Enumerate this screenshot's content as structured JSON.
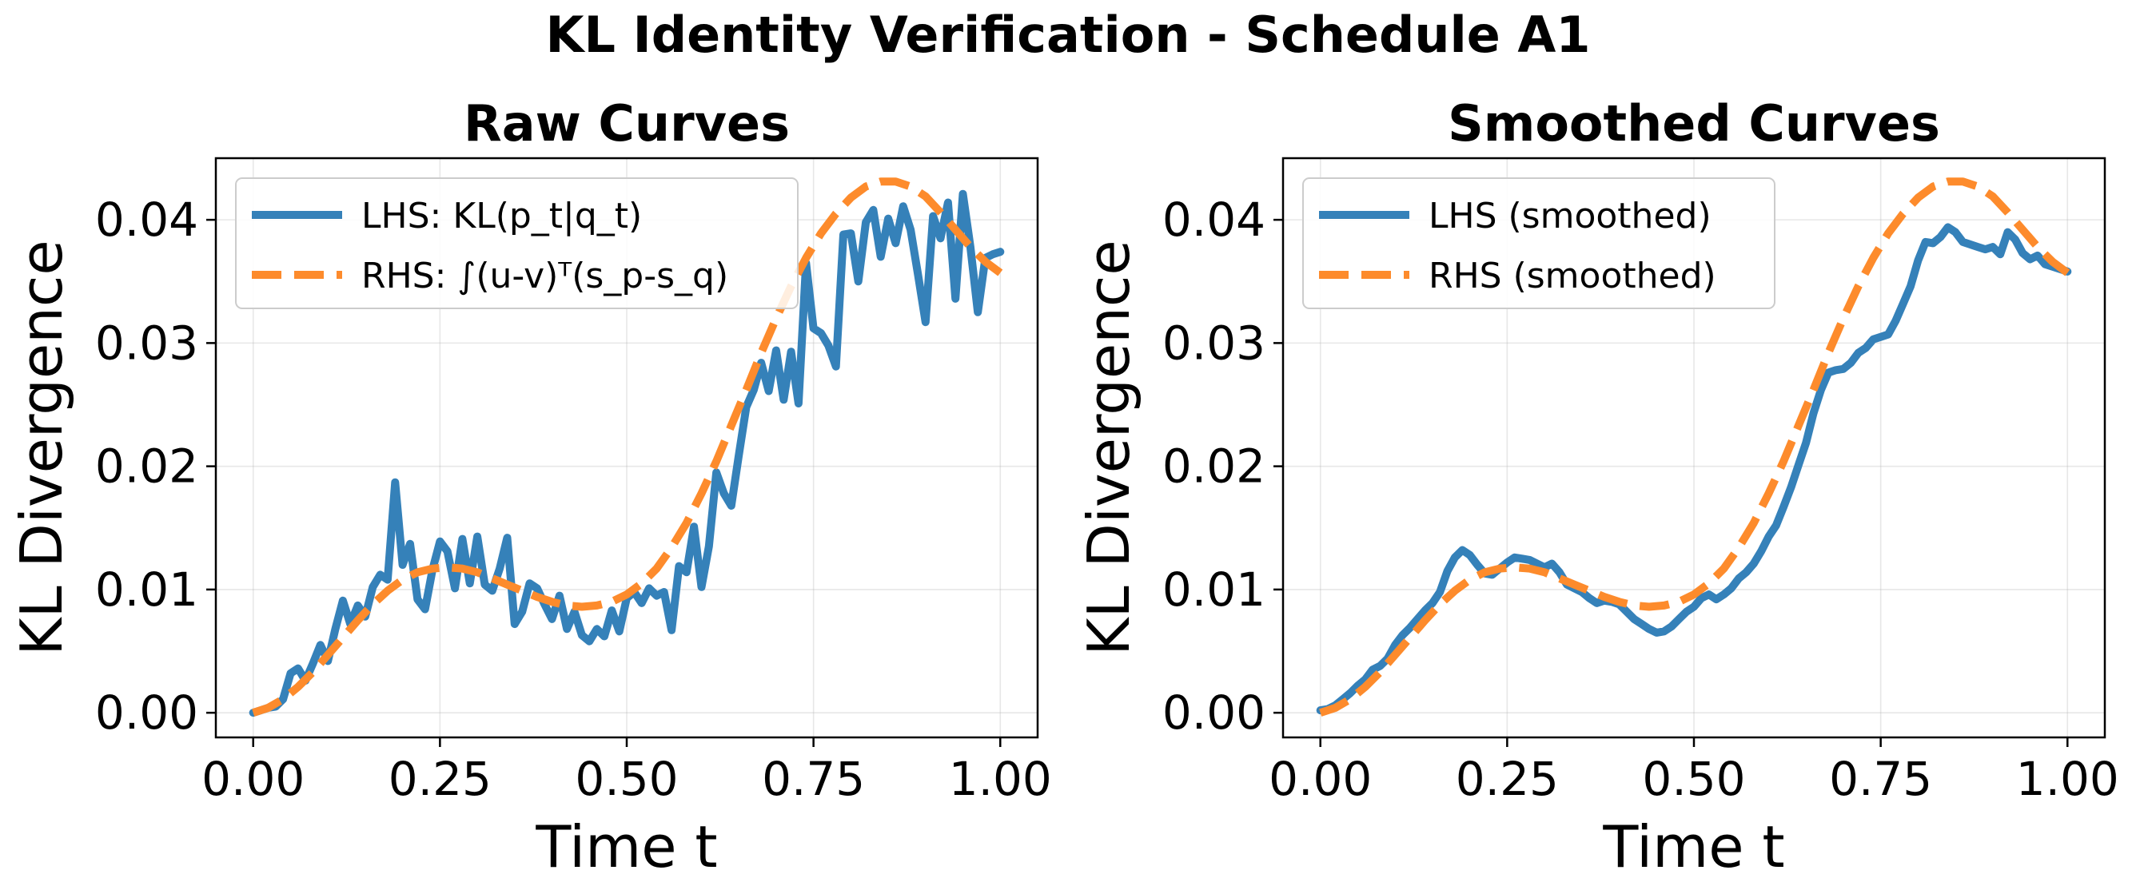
{
  "figure": {
    "title": "KL Identity Verification - Schedule A1"
  },
  "colors": {
    "lhs": "#3581b9",
    "rhs": "#fd8b2c"
  },
  "chart_data": [
    {
      "type": "line",
      "title": "Raw Curves",
      "xlabel": "Time t",
      "ylabel": "KL Divergence",
      "xlim": [
        -0.05,
        1.05
      ],
      "ylim": [
        -0.002,
        0.045
      ],
      "xticks": [
        0.0,
        0.25,
        0.5,
        0.75,
        1.0
      ],
      "xtick_labels": [
        "0.00",
        "0.25",
        "0.50",
        "0.75",
        "1.00"
      ],
      "yticks": [
        0.0,
        0.01,
        0.02,
        0.03,
        0.04
      ],
      "ytick_labels": [
        "0.00",
        "0.01",
        "0.02",
        "0.03",
        "0.04"
      ],
      "grid": true,
      "legend_position": "top-left",
      "series": [
        {
          "name": "LHS: KL(p_t|q_t)",
          "style": "solid",
          "color": "#3581b9",
          "x": [
            0.0,
            0.01,
            0.02,
            0.03,
            0.04,
            0.05,
            0.06,
            0.07,
            0.08,
            0.09,
            0.1,
            0.11,
            0.12,
            0.13,
            0.14,
            0.15,
            0.16,
            0.17,
            0.18,
            0.19,
            0.2,
            0.21,
            0.22,
            0.23,
            0.24,
            0.25,
            0.26,
            0.27,
            0.28,
            0.29,
            0.3,
            0.31,
            0.32,
            0.33,
            0.34,
            0.35,
            0.36,
            0.37,
            0.38,
            0.39,
            0.4,
            0.41,
            0.42,
            0.43,
            0.44,
            0.45,
            0.46,
            0.47,
            0.48,
            0.49,
            0.5,
            0.51,
            0.52,
            0.53,
            0.54,
            0.55,
            0.56,
            0.57,
            0.58,
            0.59,
            0.6,
            0.61,
            0.62,
            0.63,
            0.64,
            0.65,
            0.66,
            0.67,
            0.68,
            0.69,
            0.7,
            0.71,
            0.72,
            0.73,
            0.74,
            0.75,
            0.76,
            0.77,
            0.78,
            0.79,
            0.8,
            0.81,
            0.82,
            0.83,
            0.84,
            0.85,
            0.86,
            0.87,
            0.88,
            0.89,
            0.9,
            0.91,
            0.92,
            0.93,
            0.94,
            0.95,
            0.96,
            0.97,
            0.98,
            0.99,
            1.0
          ],
          "y": [
            0.0,
            0.0002,
            0.0004,
            0.0005,
            0.0011,
            0.0032,
            0.0036,
            0.0026,
            0.004,
            0.0055,
            0.0042,
            0.0068,
            0.0091,
            0.0072,
            0.0087,
            0.0078,
            0.0102,
            0.0112,
            0.0108,
            0.0187,
            0.012,
            0.0137,
            0.0092,
            0.0084,
            0.0116,
            0.0139,
            0.0131,
            0.0101,
            0.0141,
            0.0105,
            0.0143,
            0.0104,
            0.0099,
            0.0117,
            0.0142,
            0.0072,
            0.0082,
            0.0105,
            0.0101,
            0.0088,
            0.0076,
            0.0095,
            0.0068,
            0.0082,
            0.0063,
            0.0058,
            0.0068,
            0.0062,
            0.0083,
            0.0066,
            0.0093,
            0.0098,
            0.0089,
            0.0101,
            0.0095,
            0.0098,
            0.0067,
            0.0119,
            0.0114,
            0.0151,
            0.0102,
            0.0135,
            0.0195,
            0.0178,
            0.0168,
            0.0209,
            0.0248,
            0.0262,
            0.0284,
            0.0261,
            0.0294,
            0.0254,
            0.0293,
            0.0251,
            0.0365,
            0.0312,
            0.0308,
            0.0298,
            0.0281,
            0.0388,
            0.0389,
            0.035,
            0.0398,
            0.0408,
            0.037,
            0.0401,
            0.0381,
            0.0411,
            0.0392,
            0.0355,
            0.0317,
            0.0403,
            0.0385,
            0.0414,
            0.0336,
            0.0421,
            0.0378,
            0.0325,
            0.0369,
            0.0372,
            0.0374
          ]
        },
        {
          "name": "RHS: ∫(u-v)ᵀ(s_p-s_q)",
          "style": "dashed",
          "color": "#fd8b2c",
          "x": [
            0.0,
            0.02,
            0.04,
            0.06,
            0.08,
            0.1,
            0.12,
            0.14,
            0.16,
            0.18,
            0.2,
            0.22,
            0.24,
            0.26,
            0.28,
            0.3,
            0.32,
            0.34,
            0.36,
            0.38,
            0.4,
            0.42,
            0.44,
            0.46,
            0.48,
            0.5,
            0.52,
            0.54,
            0.56,
            0.58,
            0.6,
            0.62,
            0.64,
            0.66,
            0.68,
            0.7,
            0.72,
            0.74,
            0.76,
            0.78,
            0.8,
            0.82,
            0.84,
            0.86,
            0.88,
            0.9,
            0.92,
            0.94,
            0.96,
            0.98,
            1.0
          ],
          "y": [
            0.0,
            0.0004,
            0.0011,
            0.0021,
            0.0033,
            0.0047,
            0.0061,
            0.0075,
            0.0088,
            0.0099,
            0.0108,
            0.0114,
            0.0117,
            0.0118,
            0.0117,
            0.0114,
            0.0109,
            0.0104,
            0.0099,
            0.0094,
            0.009,
            0.0087,
            0.0086,
            0.0087,
            0.009,
            0.0096,
            0.0105,
            0.0117,
            0.0134,
            0.0154,
            0.0178,
            0.0204,
            0.0233,
            0.0262,
            0.0292,
            0.032,
            0.0346,
            0.0369,
            0.0389,
            0.0405,
            0.0418,
            0.0427,
            0.0431,
            0.0431,
            0.0427,
            0.0419,
            0.0406,
            0.0392,
            0.0378,
            0.0366,
            0.0357
          ]
        }
      ]
    },
    {
      "type": "line",
      "title": "Smoothed Curves",
      "xlabel": "Time t",
      "ylabel": "KL Divergence",
      "xlim": [
        -0.05,
        1.05
      ],
      "ylim": [
        -0.002,
        0.045
      ],
      "xticks": [
        0.0,
        0.25,
        0.5,
        0.75,
        1.0
      ],
      "xtick_labels": [
        "0.00",
        "0.25",
        "0.50",
        "0.75",
        "1.00"
      ],
      "yticks": [
        0.0,
        0.01,
        0.02,
        0.03,
        0.04
      ],
      "ytick_labels": [
        "0.00",
        "0.01",
        "0.02",
        "0.03",
        "0.04"
      ],
      "grid": true,
      "legend_position": "top-left",
      "series": [
        {
          "name": "LHS (smoothed)",
          "style": "solid",
          "color": "#3581b9",
          "x": [
            0.0,
            0.01,
            0.02,
            0.03,
            0.04,
            0.05,
            0.06,
            0.07,
            0.08,
            0.09,
            0.1,
            0.11,
            0.12,
            0.13,
            0.14,
            0.15,
            0.16,
            0.17,
            0.18,
            0.19,
            0.2,
            0.21,
            0.22,
            0.23,
            0.24,
            0.25,
            0.26,
            0.27,
            0.28,
            0.29,
            0.3,
            0.31,
            0.32,
            0.33,
            0.34,
            0.35,
            0.36,
            0.37,
            0.38,
            0.39,
            0.4,
            0.41,
            0.42,
            0.43,
            0.44,
            0.45,
            0.46,
            0.47,
            0.48,
            0.49,
            0.5,
            0.51,
            0.52,
            0.53,
            0.54,
            0.55,
            0.56,
            0.57,
            0.58,
            0.59,
            0.6,
            0.61,
            0.62,
            0.63,
            0.64,
            0.65,
            0.66,
            0.67,
            0.68,
            0.69,
            0.7,
            0.71,
            0.72,
            0.73,
            0.74,
            0.75,
            0.76,
            0.77,
            0.78,
            0.79,
            0.8,
            0.81,
            0.82,
            0.83,
            0.84,
            0.85,
            0.86,
            0.87,
            0.88,
            0.89,
            0.9,
            0.91,
            0.92,
            0.93,
            0.94,
            0.95,
            0.96,
            0.97,
            0.98,
            0.99,
            1.0
          ],
          "y": [
            0.0002,
            0.0003,
            0.0006,
            0.0011,
            0.0016,
            0.0022,
            0.0027,
            0.0035,
            0.0038,
            0.0044,
            0.0055,
            0.0063,
            0.0069,
            0.0076,
            0.0083,
            0.0089,
            0.0098,
            0.0115,
            0.0126,
            0.0132,
            0.0128,
            0.012,
            0.0113,
            0.0112,
            0.0117,
            0.0122,
            0.0126,
            0.0125,
            0.0124,
            0.0121,
            0.0118,
            0.0121,
            0.0114,
            0.0104,
            0.0101,
            0.0098,
            0.0093,
            0.0089,
            0.0091,
            0.009,
            0.0088,
            0.0082,
            0.0076,
            0.0072,
            0.0068,
            0.0065,
            0.0066,
            0.007,
            0.0076,
            0.0082,
            0.0086,
            0.0093,
            0.0096,
            0.0092,
            0.0096,
            0.0101,
            0.0109,
            0.0114,
            0.0121,
            0.0131,
            0.0143,
            0.0152,
            0.0167,
            0.0183,
            0.0201,
            0.0219,
            0.0243,
            0.0262,
            0.0276,
            0.0278,
            0.0279,
            0.0284,
            0.0292,
            0.0296,
            0.0303,
            0.0305,
            0.0307,
            0.0318,
            0.0332,
            0.0346,
            0.0367,
            0.0382,
            0.0381,
            0.0386,
            0.0394,
            0.039,
            0.0382,
            0.038,
            0.0378,
            0.0376,
            0.0378,
            0.0372,
            0.039,
            0.0384,
            0.0373,
            0.0368,
            0.0371,
            0.0364,
            0.0362,
            0.036,
            0.0358
          ]
        },
        {
          "name": "RHS (smoothed)",
          "style": "dashed",
          "color": "#fd8b2c",
          "x": [
            0.0,
            0.02,
            0.04,
            0.06,
            0.08,
            0.1,
            0.12,
            0.14,
            0.16,
            0.18,
            0.2,
            0.22,
            0.24,
            0.26,
            0.28,
            0.3,
            0.32,
            0.34,
            0.36,
            0.38,
            0.4,
            0.42,
            0.44,
            0.46,
            0.48,
            0.5,
            0.52,
            0.54,
            0.56,
            0.58,
            0.6,
            0.62,
            0.64,
            0.66,
            0.68,
            0.7,
            0.72,
            0.74,
            0.76,
            0.78,
            0.8,
            0.82,
            0.84,
            0.86,
            0.88,
            0.9,
            0.92,
            0.94,
            0.96,
            0.98,
            1.0
          ],
          "y": [
            0.0,
            0.0004,
            0.0011,
            0.0021,
            0.0033,
            0.0047,
            0.0061,
            0.0075,
            0.0088,
            0.0099,
            0.0108,
            0.0114,
            0.0117,
            0.0118,
            0.0117,
            0.0114,
            0.0109,
            0.0104,
            0.0099,
            0.0094,
            0.009,
            0.0087,
            0.0086,
            0.0087,
            0.009,
            0.0096,
            0.0105,
            0.0117,
            0.0134,
            0.0154,
            0.0178,
            0.0204,
            0.0233,
            0.0262,
            0.0292,
            0.032,
            0.0346,
            0.0369,
            0.0389,
            0.0405,
            0.0418,
            0.0427,
            0.0431,
            0.0431,
            0.0427,
            0.0419,
            0.0406,
            0.0392,
            0.0378,
            0.0366,
            0.0357
          ]
        }
      ]
    }
  ]
}
